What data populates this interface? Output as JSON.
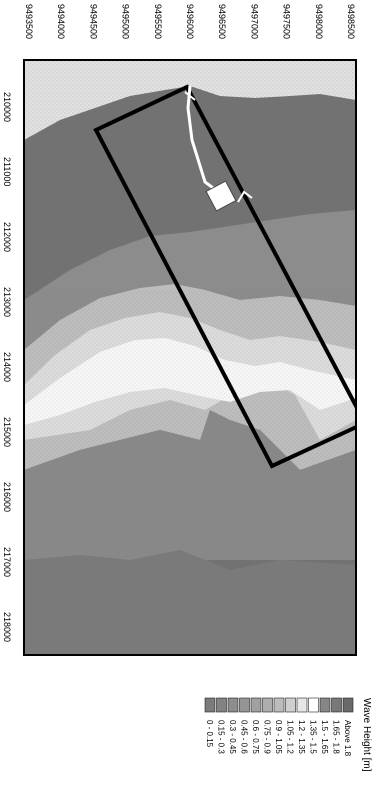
{
  "legend": {
    "title": "Wave Height [m]",
    "items": [
      {
        "label": "Above  1.8",
        "color": "#6a6a6a"
      },
      {
        "label": "1.65 -  1.8",
        "color": "#787878"
      },
      {
        "label": "1.5 -  1.65",
        "color": "#868686"
      },
      {
        "label": "1.35 -  1.5",
        "color": "#ffffff"
      },
      {
        "label": "1.2 -  1.35",
        "color": "#e6e6e6"
      },
      {
        "label": "1.05 -  1.2",
        "color": "#cfcfcf"
      },
      {
        "label": "0.9 -  1.05",
        "color": "#bcbcbc"
      },
      {
        "label": "0.75 -  0.9",
        "color": "#adadad"
      },
      {
        "label": "0.6 -  0.75",
        "color": "#a0a0a0"
      },
      {
        "label": "0.45 -  0.6",
        "color": "#959595"
      },
      {
        "label": "0.3 -  0.45",
        "color": "#8d8d8d"
      },
      {
        "label": "0.15 -  0.3",
        "color": "#838383"
      },
      {
        "label": "0 -  0.15",
        "color": "#7b7b7b"
      }
    ]
  },
  "axes": {
    "easting_ticks": [
      "210000",
      "211000",
      "212000",
      "213000",
      "214000",
      "215000",
      "216000",
      "217000",
      "218000"
    ],
    "northing_ticks": [
      "9493500",
      "9494000",
      "9494500",
      "9495000",
      "9495500",
      "9496000",
      "9496500",
      "9497000",
      "9497500",
      "9498000",
      "9498500"
    ]
  },
  "colors": {
    "land": "#e2e2e2",
    "deep": "#6f6f6f",
    "mid": "#8e8e8e",
    "band_light": "#bdbdbd",
    "band_lighter": "#dcdcdc",
    "band_white": "#f7f7f7",
    "outline": "#000000"
  }
}
